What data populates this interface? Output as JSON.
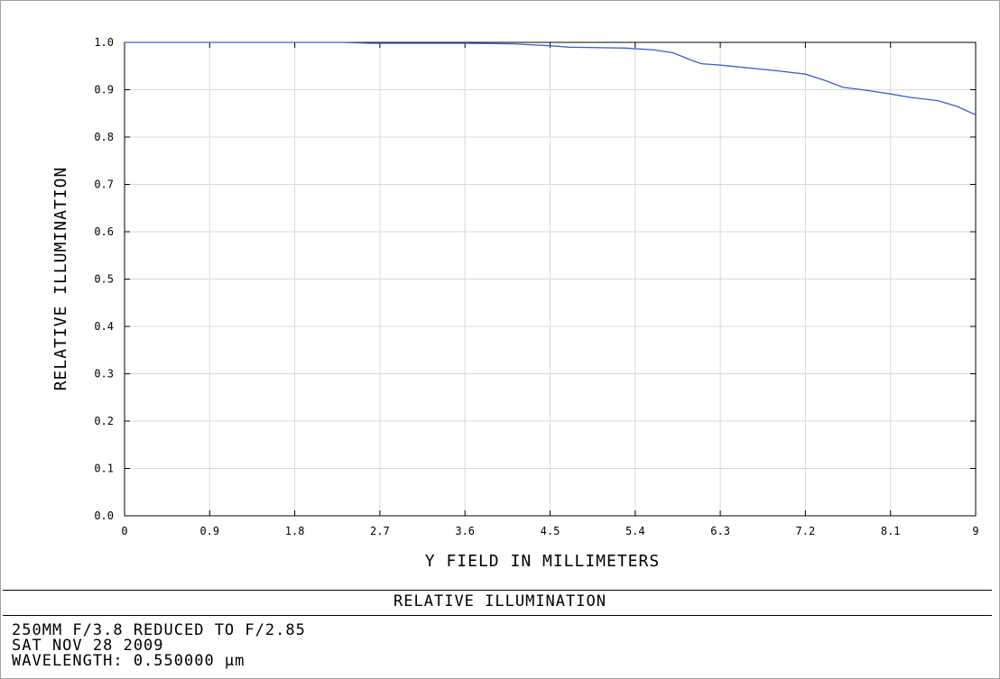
{
  "chart_data": {
    "type": "line",
    "title": "RELATIVE ILLUMINATION",
    "xlabel": "Y FIELD IN MILLIMETERS",
    "ylabel": "RELATIVE ILLUMINATION",
    "xlim": [
      0,
      9
    ],
    "ylim": [
      0,
      1.0
    ],
    "x_ticks": [
      "0",
      "0.9",
      "1.8",
      "2.7",
      "3.6",
      "4.5",
      "5.4",
      "6.3",
      "7.2",
      "8.1",
      "9"
    ],
    "y_ticks": [
      "0.0",
      "0.1",
      "0.2",
      "0.3",
      "0.4",
      "0.5",
      "0.6",
      "0.7",
      "0.8",
      "0.9",
      "1.0"
    ],
    "grid": true,
    "series": [
      {
        "color": "#3a5fcd",
        "x": [
          0,
          0.9,
          1.8,
          2.3,
          2.6,
          3.6,
          4.1,
          4.5,
          4.7,
          5.3,
          5.6,
          5.8,
          6.0,
          6.1,
          6.3,
          6.5,
          6.9,
          7.2,
          7.4,
          7.6,
          7.8,
          8.1,
          8.3,
          8.6,
          8.8,
          9.0
        ],
        "y": [
          1.0,
          1.0,
          1.0,
          1.0,
          0.998,
          0.998,
          0.997,
          0.993,
          0.99,
          0.988,
          0.984,
          0.978,
          0.962,
          0.955,
          0.952,
          0.948,
          0.94,
          0.933,
          0.92,
          0.905,
          0.9,
          0.891,
          0.884,
          0.877,
          0.865,
          0.847
        ]
      }
    ]
  },
  "footer": {
    "title": "RELATIVE ILLUMINATION",
    "lines": [
      "250MM F/3.8 REDUCED TO F/2.85",
      "SAT NOV 28 2009",
      "WAVELENGTH: 0.550000 µm"
    ]
  }
}
